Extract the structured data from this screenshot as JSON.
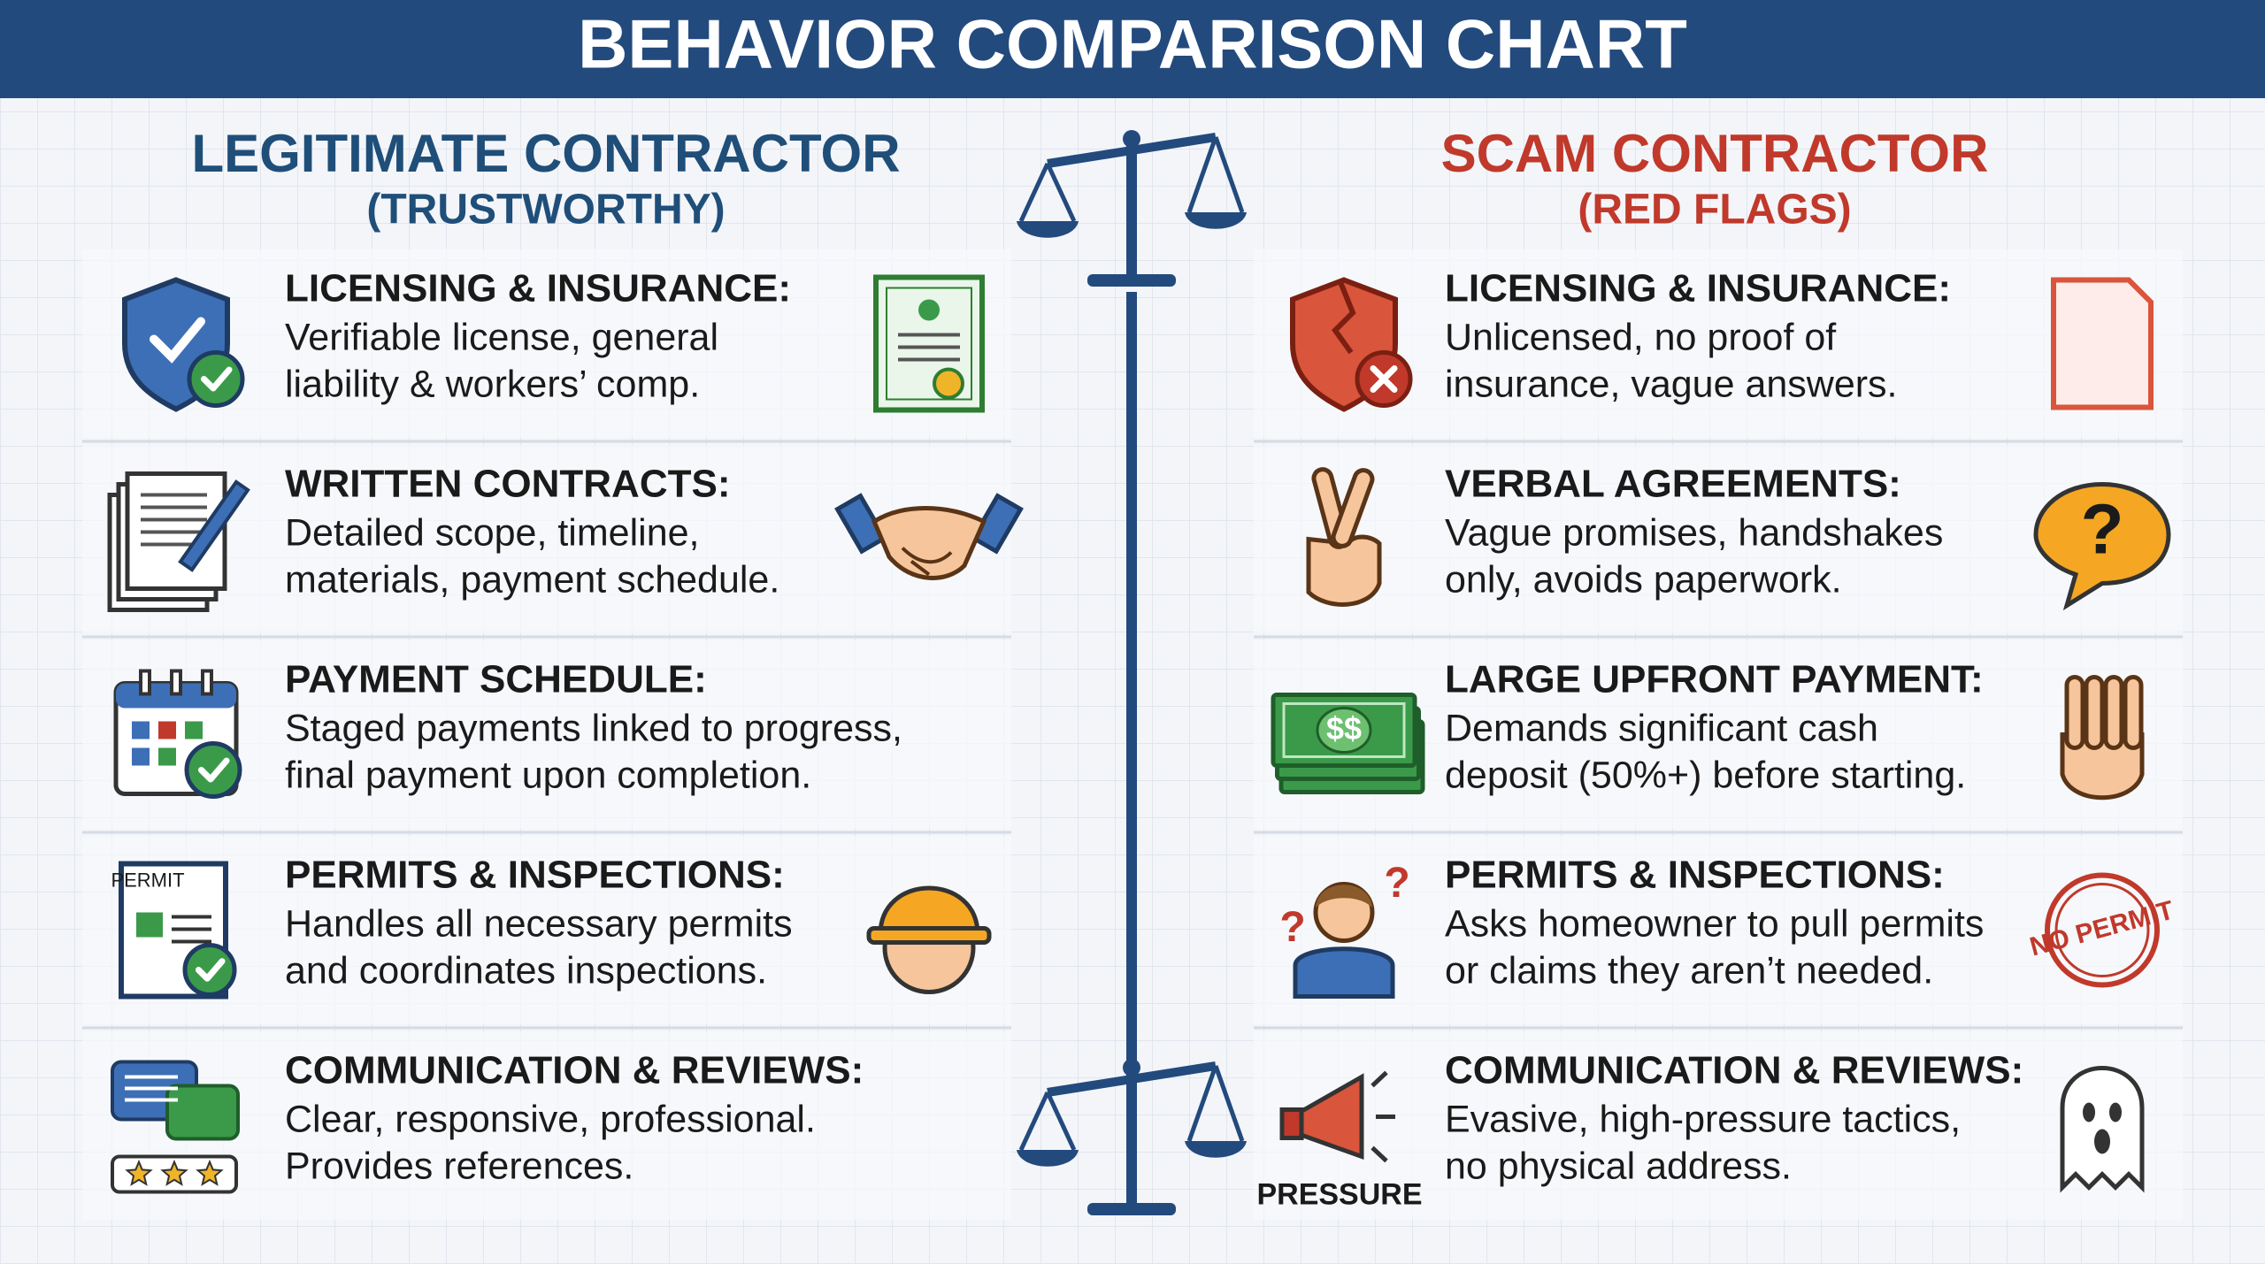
{
  "title": "BEHAVIOR COMPARISON CHART",
  "columns": [
    {
      "heading": "LEGITIMATE CONTRACTOR",
      "subheading": "(TRUSTWORTHY)",
      "items": [
        {
          "title": "LICENSING & INSURANCE:",
          "lines": [
            "Verifiable license, general",
            "liability & workers’ comp."
          ]
        },
        {
          "title": "WRITTEN CONTRACTS:",
          "lines": [
            "Detailed scope, timeline,",
            "materials, payment schedule."
          ]
        },
        {
          "title": "PAYMENT SCHEDULE:",
          "lines": [
            "Staged payments linked to progress,",
            "final payment upon completion."
          ]
        },
        {
          "title": "PERMITS & INSPECTIONS:",
          "lines": [
            "Handles all necessary permits",
            "and coordinates inspections."
          ],
          "icon_texts": [
            "PERMIT"
          ]
        },
        {
          "title": "COMMUNICATION & REVIEWS:",
          "lines": [
            "Clear, responsive, professional.",
            "Provides references."
          ]
        }
      ]
    },
    {
      "heading": "SCAM CONTRACTOR",
      "subheading": "(RED FLAGS)",
      "items": [
        {
          "title": "LICENSING & INSURANCE:",
          "lines": [
            "Unlicensed, no proof of",
            "insurance, vague answers."
          ]
        },
        {
          "title": "VERBAL AGREEMENTS:",
          "lines": [
            "Vague promises, handshakes",
            "only, avoids paperwork."
          ],
          "icon_texts": [
            "?"
          ]
        },
        {
          "title": "LARGE UPFRONT PAYMENT:",
          "lines": [
            "Demands significant cash",
            "deposit (50%+) before starting."
          ],
          "icon_texts": [
            "$$"
          ]
        },
        {
          "title": "PERMITS & INSPECTIONS:",
          "lines": [
            "Asks homeowner to pull permits",
            "or claims they aren’t needed."
          ],
          "icon_texts": [
            "?",
            "?",
            "NO PERMIT"
          ]
        },
        {
          "title": "COMMUNICATION & REVIEWS:",
          "lines": [
            "Evasive, high-pressure tactics,",
            "no physical address."
          ],
          "icon_texts": [
            "PRESSURE"
          ]
        }
      ]
    }
  ]
}
